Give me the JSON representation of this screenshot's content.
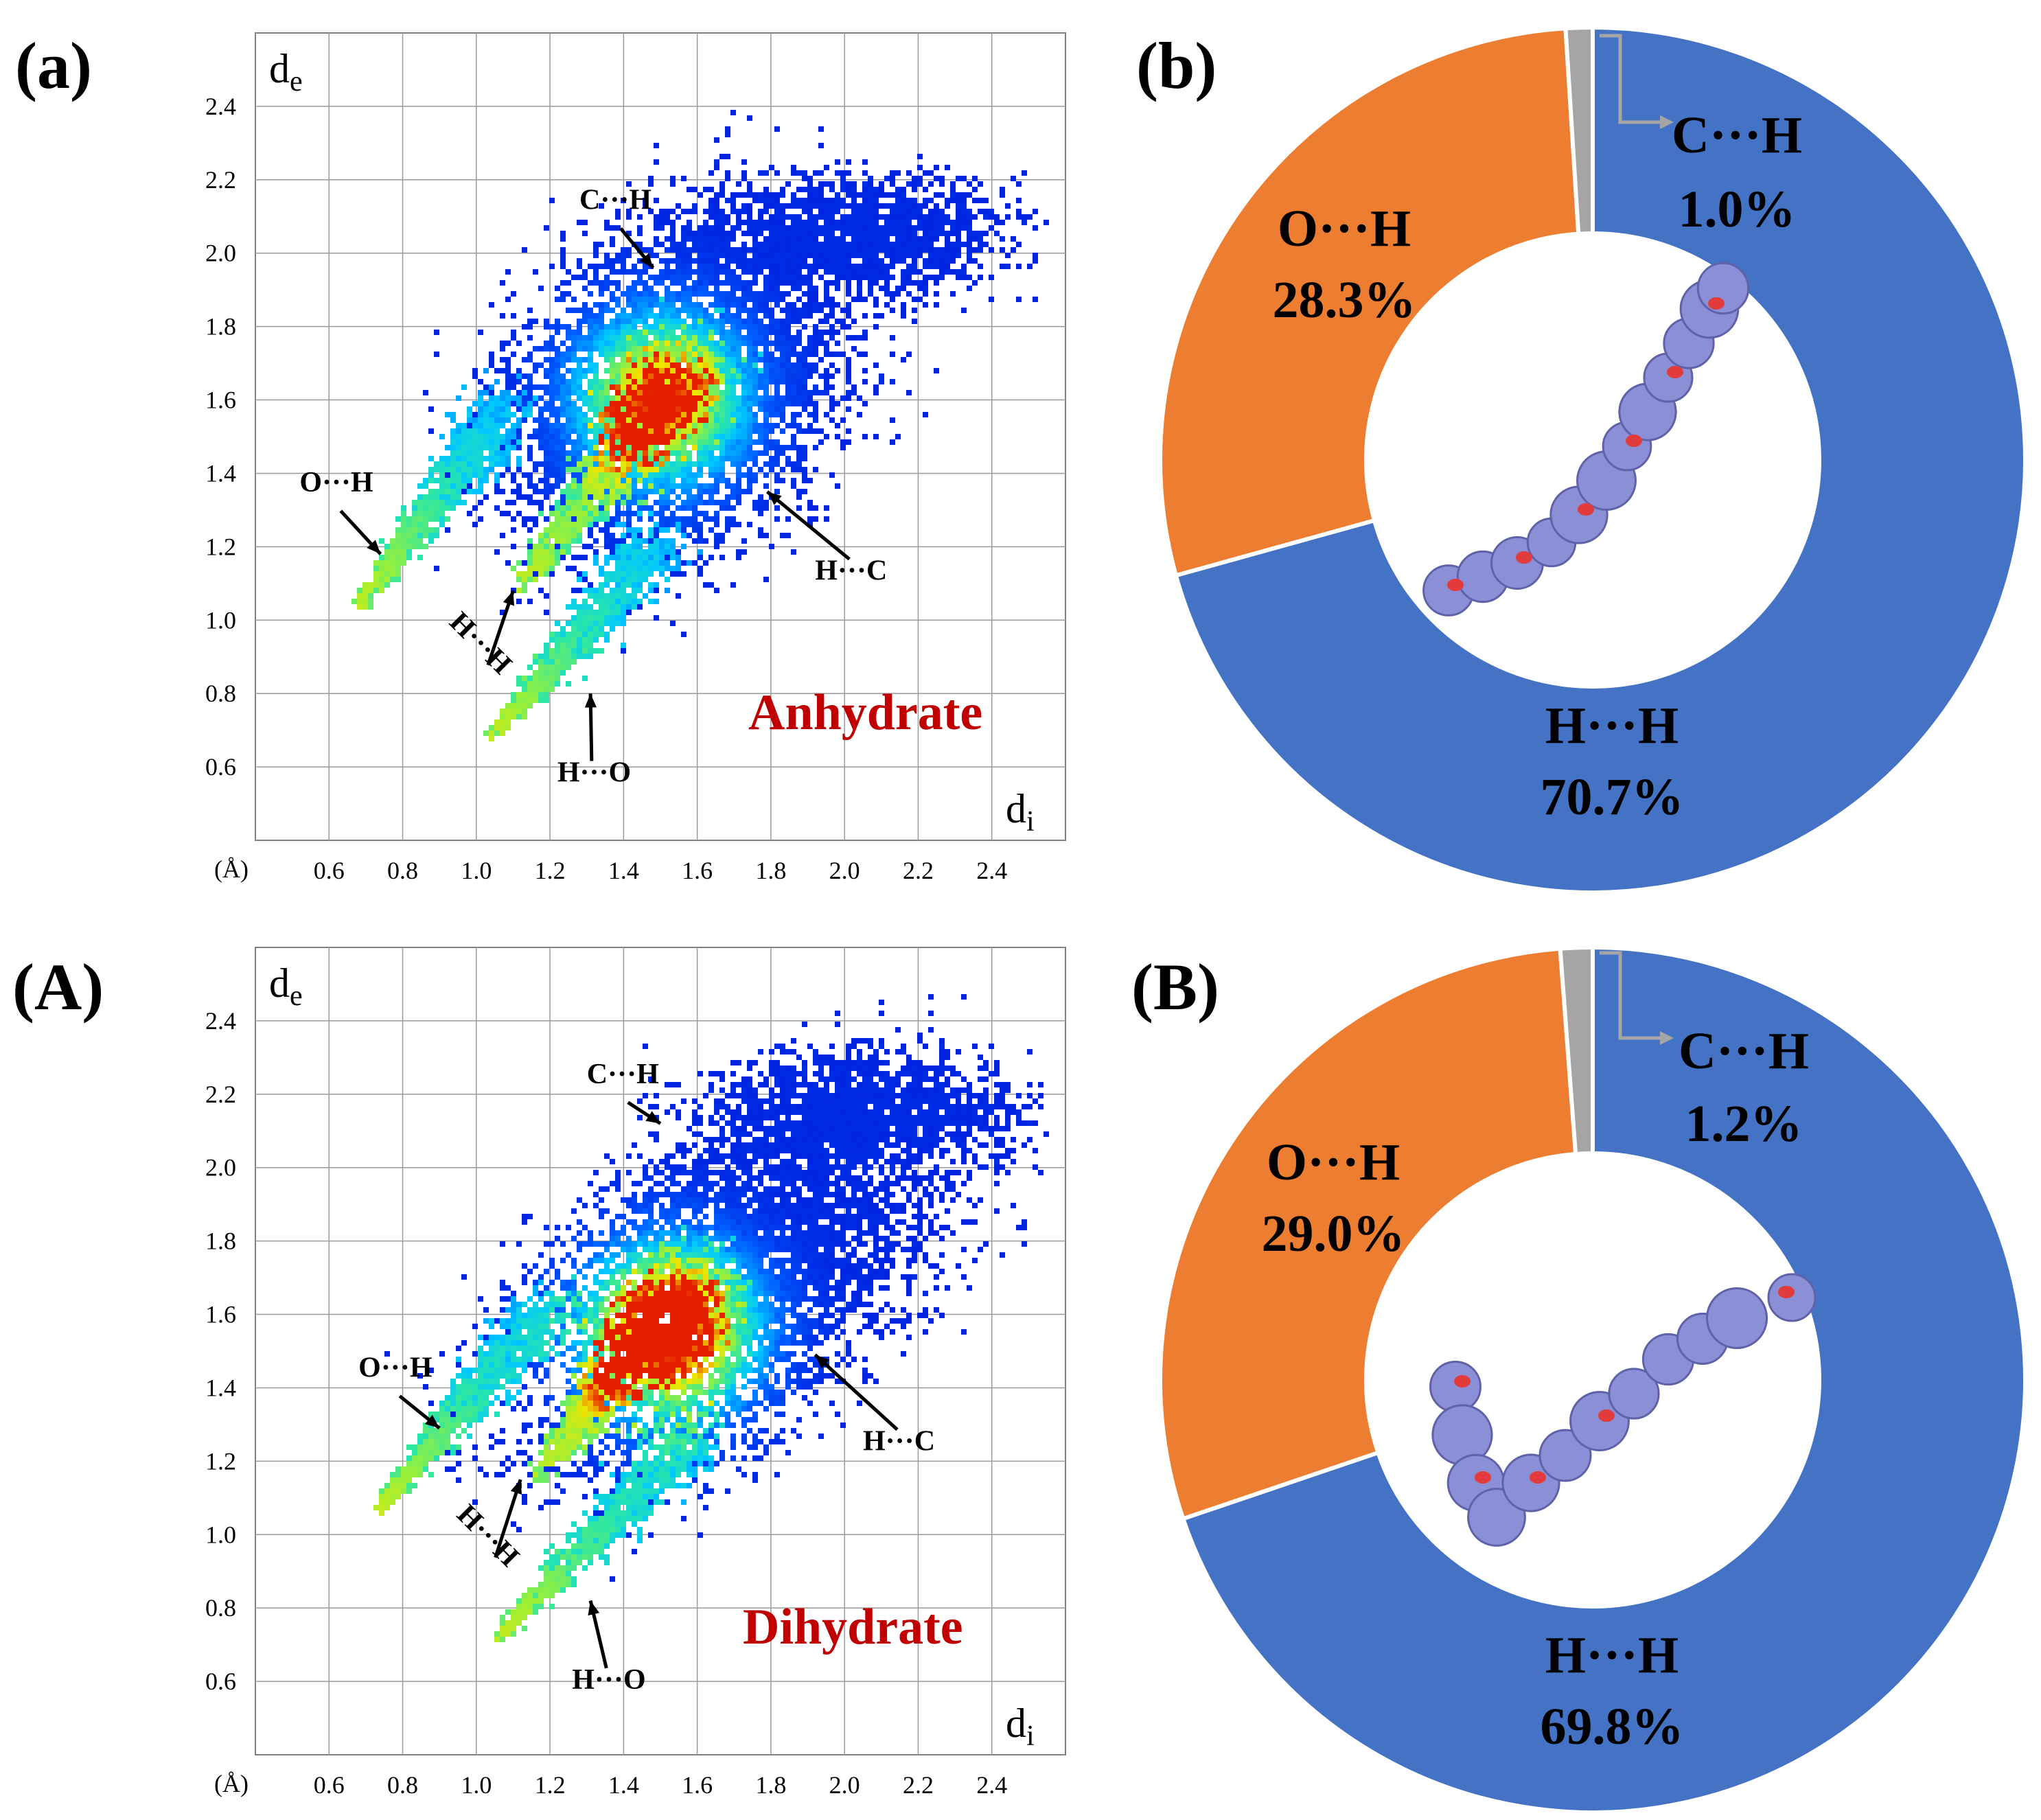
{
  "panels": [
    {
      "id": "a",
      "label": "(a)",
      "kind": "fingerprint",
      "name": "Anhydrate",
      "axes": {
        "de_label": "d",
        "de_sub": "e",
        "di_label": "d",
        "di_sub": "i",
        "unit": "(Å)",
        "xlim": [
          0.4,
          2.6
        ],
        "ylim": [
          0.4,
          2.6
        ],
        "x_ticks": [
          "0.6",
          "0.8",
          "1.0",
          "1.2",
          "1.4",
          "1.6",
          "1.8",
          "2.0",
          "2.2",
          "2.4"
        ],
        "y_ticks": [
          "0.6",
          "0.8",
          "1.0",
          "1.2",
          "1.4",
          "1.6",
          "1.8",
          "2.0",
          "2.2",
          "2.4"
        ]
      },
      "annotations": [
        {
          "text": "C···H",
          "label_at": [
            1.28,
            2.12
          ],
          "arrow_to": [
            1.48,
            1.96
          ]
        },
        {
          "text": "O···H",
          "label_at": [
            0.52,
            1.35
          ],
          "arrow_to": [
            0.74,
            1.18
          ]
        },
        {
          "text": "H···H",
          "label_at": [
            0.92,
            0.93
          ],
          "arrow_to": [
            1.1,
            1.08
          ],
          "rotate": 45
        },
        {
          "text": "H···O",
          "label_at": [
            1.22,
            0.56
          ],
          "arrow_to": [
            1.31,
            0.8
          ]
        },
        {
          "text": "H···C",
          "label_at": [
            1.92,
            1.11
          ],
          "arrow_to": [
            1.79,
            1.35
          ]
        }
      ],
      "regions": [
        {
          "name": "O···H spike",
          "tip": [
            0.68,
            1.04
          ],
          "end": [
            1.08,
            1.58
          ],
          "width": 0.05
        },
        {
          "name": "H···O spike",
          "tip": [
            1.04,
            0.68
          ],
          "end": [
            1.5,
            1.22
          ],
          "width": 0.05
        },
        {
          "name": "H···H",
          "tip": [
            1.12,
            1.1
          ],
          "end": [
            1.6,
            1.7
          ],
          "width": 0.08
        },
        {
          "name": "main body",
          "center": [
            1.55,
            1.65
          ],
          "rx": 0.58,
          "ry": 0.42,
          "angle": 45
        },
        {
          "name": "upper wing",
          "center": [
            2.05,
            2.05
          ],
          "rx": 0.42,
          "ry": 0.18,
          "angle": 0
        }
      ],
      "hotspot": {
        "center": [
          1.5,
          1.6
        ],
        "intensity": "green"
      }
    },
    {
      "id": "b",
      "label": "(b)",
      "kind": "donut",
      "slices": [
        {
          "name": "H···H",
          "value": 70.7,
          "pct": "70.7%",
          "color": "#4472C4"
        },
        {
          "name": "O···H",
          "value": 28.3,
          "pct": "28.3%",
          "color": "#ED7D31"
        },
        {
          "name": "C···H",
          "value": 1.0,
          "pct": "1.0%",
          "color": "#A5A5A5"
        }
      ]
    },
    {
      "id": "A",
      "label": "(A)",
      "kind": "fingerprint",
      "name": "Dihydrate",
      "axes": {
        "de_label": "d",
        "de_sub": "e",
        "di_label": "d",
        "di_sub": "i",
        "unit": "(Å)",
        "xlim": [
          0.4,
          2.6
        ],
        "ylim": [
          0.4,
          2.6
        ],
        "x_ticks": [
          "0.6",
          "0.8",
          "1.0",
          "1.2",
          "1.4",
          "1.6",
          "1.8",
          "2.0",
          "2.2",
          "2.4"
        ],
        "y_ticks": [
          "0.6",
          "0.8",
          "1.0",
          "1.2",
          "1.4",
          "1.6",
          "1.8",
          "2.0",
          "2.2",
          "2.4"
        ]
      },
      "annotations": [
        {
          "text": "C···H",
          "label_at": [
            1.3,
            2.23
          ],
          "arrow_to": [
            1.5,
            2.12
          ]
        },
        {
          "text": "O···H",
          "label_at": [
            0.68,
            1.43
          ],
          "arrow_to": [
            0.9,
            1.29
          ]
        },
        {
          "text": "H···H",
          "label_at": [
            0.94,
            0.99
          ],
          "arrow_to": [
            1.12,
            1.15
          ],
          "rotate": 45
        },
        {
          "text": "H···O",
          "label_at": [
            1.26,
            0.58
          ],
          "arrow_to": [
            1.31,
            0.82
          ]
        },
        {
          "text": "H···C",
          "label_at": [
            2.05,
            1.23
          ],
          "arrow_to": [
            1.92,
            1.49
          ]
        }
      ],
      "regions": [
        {
          "name": "O···H spike",
          "tip": [
            0.73,
            1.06
          ],
          "end": [
            1.2,
            1.62
          ],
          "width": 0.05
        },
        {
          "name": "H···O spike",
          "tip": [
            1.06,
            0.72
          ],
          "end": [
            1.6,
            1.28
          ],
          "width": 0.05
        },
        {
          "name": "H···H",
          "tip": [
            1.16,
            1.16
          ],
          "end": [
            1.6,
            1.7
          ],
          "width": 0.08
        },
        {
          "name": "main body",
          "center": [
            1.7,
            1.7
          ],
          "rx": 0.7,
          "ry": 0.4,
          "angle": 40
        },
        {
          "name": "upper wing",
          "center": [
            2.05,
            2.15
          ],
          "rx": 0.45,
          "ry": 0.17,
          "angle": 0
        }
      ],
      "hotspot": {
        "center": [
          1.52,
          1.55
        ],
        "intensity": "red"
      }
    },
    {
      "id": "B",
      "label": "(B)",
      "kind": "donut",
      "slices": [
        {
          "name": "H···H",
          "value": 69.8,
          "pct": "69.8%",
          "color": "#4472C4"
        },
        {
          "name": "O···H",
          "value": 29.0,
          "pct": "29.0%",
          "color": "#ED7D31"
        },
        {
          "name": "C···H",
          "value": 1.2,
          "pct": "1.2%",
          "color": "#A5A5A5"
        }
      ]
    }
  ],
  "chart_data": [
    {
      "type": "heatmap",
      "title": "Anhydrate",
      "xlabel": "di (Å)",
      "ylabel": "de (Å)",
      "xlim": [
        0.4,
        2.6
      ],
      "ylim": [
        0.4,
        2.6
      ],
      "grid": true,
      "annotations": [
        "C···H",
        "O···H",
        "H···H",
        "H···O",
        "H···C"
      ]
    },
    {
      "type": "pie",
      "categories": [
        "H···H",
        "O···H",
        "C···H"
      ],
      "values": [
        70.7,
        28.3,
        1.0
      ]
    },
    {
      "type": "heatmap",
      "title": "Dihydrate",
      "xlabel": "di (Å)",
      "ylabel": "de (Å)",
      "xlim": [
        0.4,
        2.6
      ],
      "ylim": [
        0.4,
        2.6
      ],
      "grid": true,
      "annotations": [
        "C···H",
        "O···H",
        "H···H",
        "H···O",
        "H···C"
      ]
    },
    {
      "type": "pie",
      "categories": [
        "H···H",
        "O···H",
        "C···H"
      ],
      "values": [
        69.8,
        29.0,
        1.2
      ]
    }
  ],
  "colors": {
    "name_text": "#C00000",
    "grid": "#808080",
    "leader": "#A5A5A5",
    "surface": "#8A8FD6",
    "spot": "#E23B3B"
  }
}
